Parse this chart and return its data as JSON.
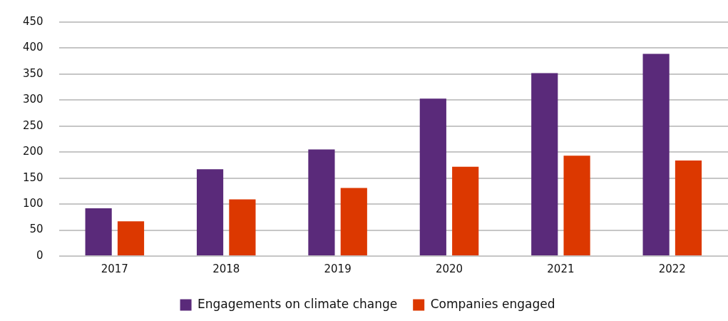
{
  "chart_data": {
    "type": "bar",
    "categories": [
      "2017",
      "2018",
      "2019",
      "2020",
      "2021",
      "2022"
    ],
    "series": [
      {
        "name": "Engagements on climate change",
        "color": "#5a2a7a",
        "values": [
          92,
          167,
          205,
          303,
          352,
          389
        ]
      },
      {
        "name": "Companies engaged",
        "color": "#dc3800",
        "values": [
          67,
          109,
          131,
          172,
          193,
          184
        ]
      }
    ],
    "ylim": [
      0,
      450
    ],
    "yticks": [
      0,
      50,
      100,
      150,
      200,
      250,
      300,
      350,
      400,
      450
    ],
    "grid": "y",
    "legend": "bottom"
  }
}
